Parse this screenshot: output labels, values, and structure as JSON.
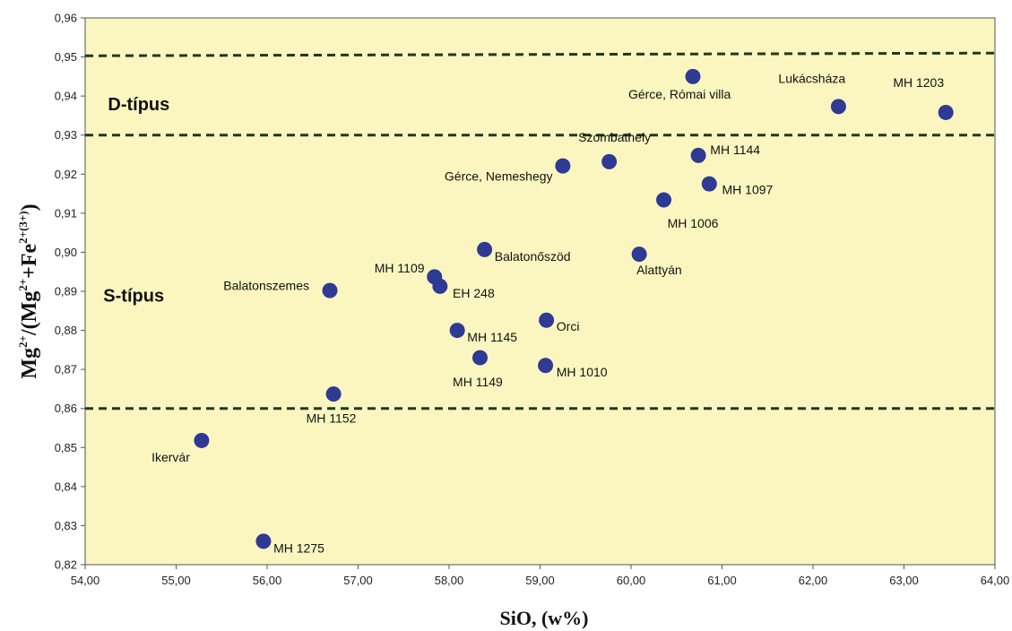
{
  "chart_data": {
    "type": "scatter",
    "xlabel": "SiO, (w%)",
    "ylabel": {
      "parts": [
        {
          "t": "Mg",
          "s": "n"
        },
        {
          "t": "2+",
          "s": "sup"
        },
        {
          "t": "/(Mg",
          "s": "n"
        },
        {
          "t": "2+",
          "s": "sup"
        },
        {
          "t": "+Fe",
          "s": "n"
        },
        {
          "t": "2+(3+)",
          "s": "sup"
        },
        {
          "t": ")",
          "s": "n"
        }
      ]
    },
    "xlim": [
      54,
      64
    ],
    "ylim": [
      0.82,
      0.96
    ],
    "x_ticks": [
      "54,00",
      "55,00",
      "56,00",
      "57,00",
      "58,00",
      "59,00",
      "60,00",
      "61,00",
      "62,00",
      "63,00",
      "64,00"
    ],
    "y_ticks": [
      "0,82",
      "0,83",
      "0,84",
      "0,85",
      "0,86",
      "0,87",
      "0,88",
      "0,89",
      "0,90",
      "0,91",
      "0,92",
      "0,93",
      "0,94",
      "0,95",
      "0,96"
    ],
    "plot_background": "#fbf6c0",
    "point_color": "#2e3a93",
    "line_color": "#1f3a1f",
    "boundary_lines": [
      {
        "y": 0.86
      },
      {
        "y": 0.93
      },
      {
        "y": [
          0.9503,
          0.951
        ]
      }
    ],
    "zone_labels": [
      {
        "text": "D-típus",
        "x": 54.25,
        "y": 0.938
      },
      {
        "text": "S-típus",
        "x": 54.2,
        "y": 0.889
      }
    ],
    "points": [
      {
        "name": "Gérce, Római villa",
        "x": 60.68,
        "y": 0.945,
        "lx": 59.97,
        "ly": 0.9405,
        "anchor": "start"
      },
      {
        "name": "Lukácsháza",
        "x": 62.28,
        "y": 0.9373,
        "lx": 61.62,
        "ly": 0.9445,
        "anchor": "start"
      },
      {
        "name": "MH 1203",
        "x": 63.46,
        "y": 0.9358,
        "lx": 62.88,
        "ly": 0.9435,
        "anchor": "start"
      },
      {
        "name": "Szombathely",
        "x": 59.76,
        "y": 0.9232,
        "lx": 59.42,
        "ly": 0.9295,
        "anchor": "start"
      },
      {
        "name": "MH 1144",
        "x": 60.74,
        "y": 0.9248,
        "lx": 60.87,
        "ly": 0.9263,
        "anchor": "start"
      },
      {
        "name": "Gérce, Nemeshegy",
        "x": 59.25,
        "y": 0.9221,
        "lx": 57.95,
        "ly": 0.9195,
        "anchor": "start"
      },
      {
        "name": "MH 1097",
        "x": 60.86,
        "y": 0.9175,
        "lx": 61.0,
        "ly": 0.916,
        "anchor": "start"
      },
      {
        "name": "MH 1006",
        "x": 60.36,
        "y": 0.9134,
        "lx": 60.4,
        "ly": 0.9075,
        "anchor": "start"
      },
      {
        "name": "Balatonőszöd",
        "x": 58.39,
        "y": 0.9007,
        "lx": 58.5,
        "ly": 0.899,
        "anchor": "start"
      },
      {
        "name": "Alattyán",
        "x": 60.09,
        "y": 0.8995,
        "lx": 60.06,
        "ly": 0.8955,
        "anchor": "start"
      },
      {
        "name": "MH 1109",
        "x": 57.84,
        "y": 0.8937,
        "lx": 57.18,
        "ly": 0.896,
        "anchor": "start"
      },
      {
        "name": "EH 248",
        "x": 57.9,
        "y": 0.8913,
        "lx": 58.04,
        "ly": 0.8895,
        "anchor": "start"
      },
      {
        "name": "Balatonszemes",
        "x": 56.69,
        "y": 0.8902,
        "lx": 55.52,
        "ly": 0.8915,
        "anchor": "start"
      },
      {
        "name": "Orci",
        "x": 59.07,
        "y": 0.8826,
        "lx": 59.18,
        "ly": 0.881,
        "anchor": "start"
      },
      {
        "name": "MH 1145",
        "x": 58.09,
        "y": 0.88,
        "lx": 58.2,
        "ly": 0.8783,
        "anchor": "start"
      },
      {
        "name": "MH 1149",
        "x": 58.34,
        "y": 0.873,
        "lx": 58.04,
        "ly": 0.8668,
        "anchor": "start"
      },
      {
        "name": "MH 1010",
        "x": 59.06,
        "y": 0.871,
        "lx": 59.18,
        "ly": 0.8693,
        "anchor": "start"
      },
      {
        "name": "MH 1152",
        "x": 56.73,
        "y": 0.8637,
        "lx": 56.43,
        "ly": 0.8575,
        "anchor": "start"
      },
      {
        "name": "Ikervár",
        "x": 55.28,
        "y": 0.8518,
        "lx": 54.73,
        "ly": 0.8475,
        "anchor": "start"
      },
      {
        "name": "MH 1275",
        "x": 55.96,
        "y": 0.826,
        "lx": 56.07,
        "ly": 0.8243,
        "anchor": "start"
      }
    ]
  }
}
